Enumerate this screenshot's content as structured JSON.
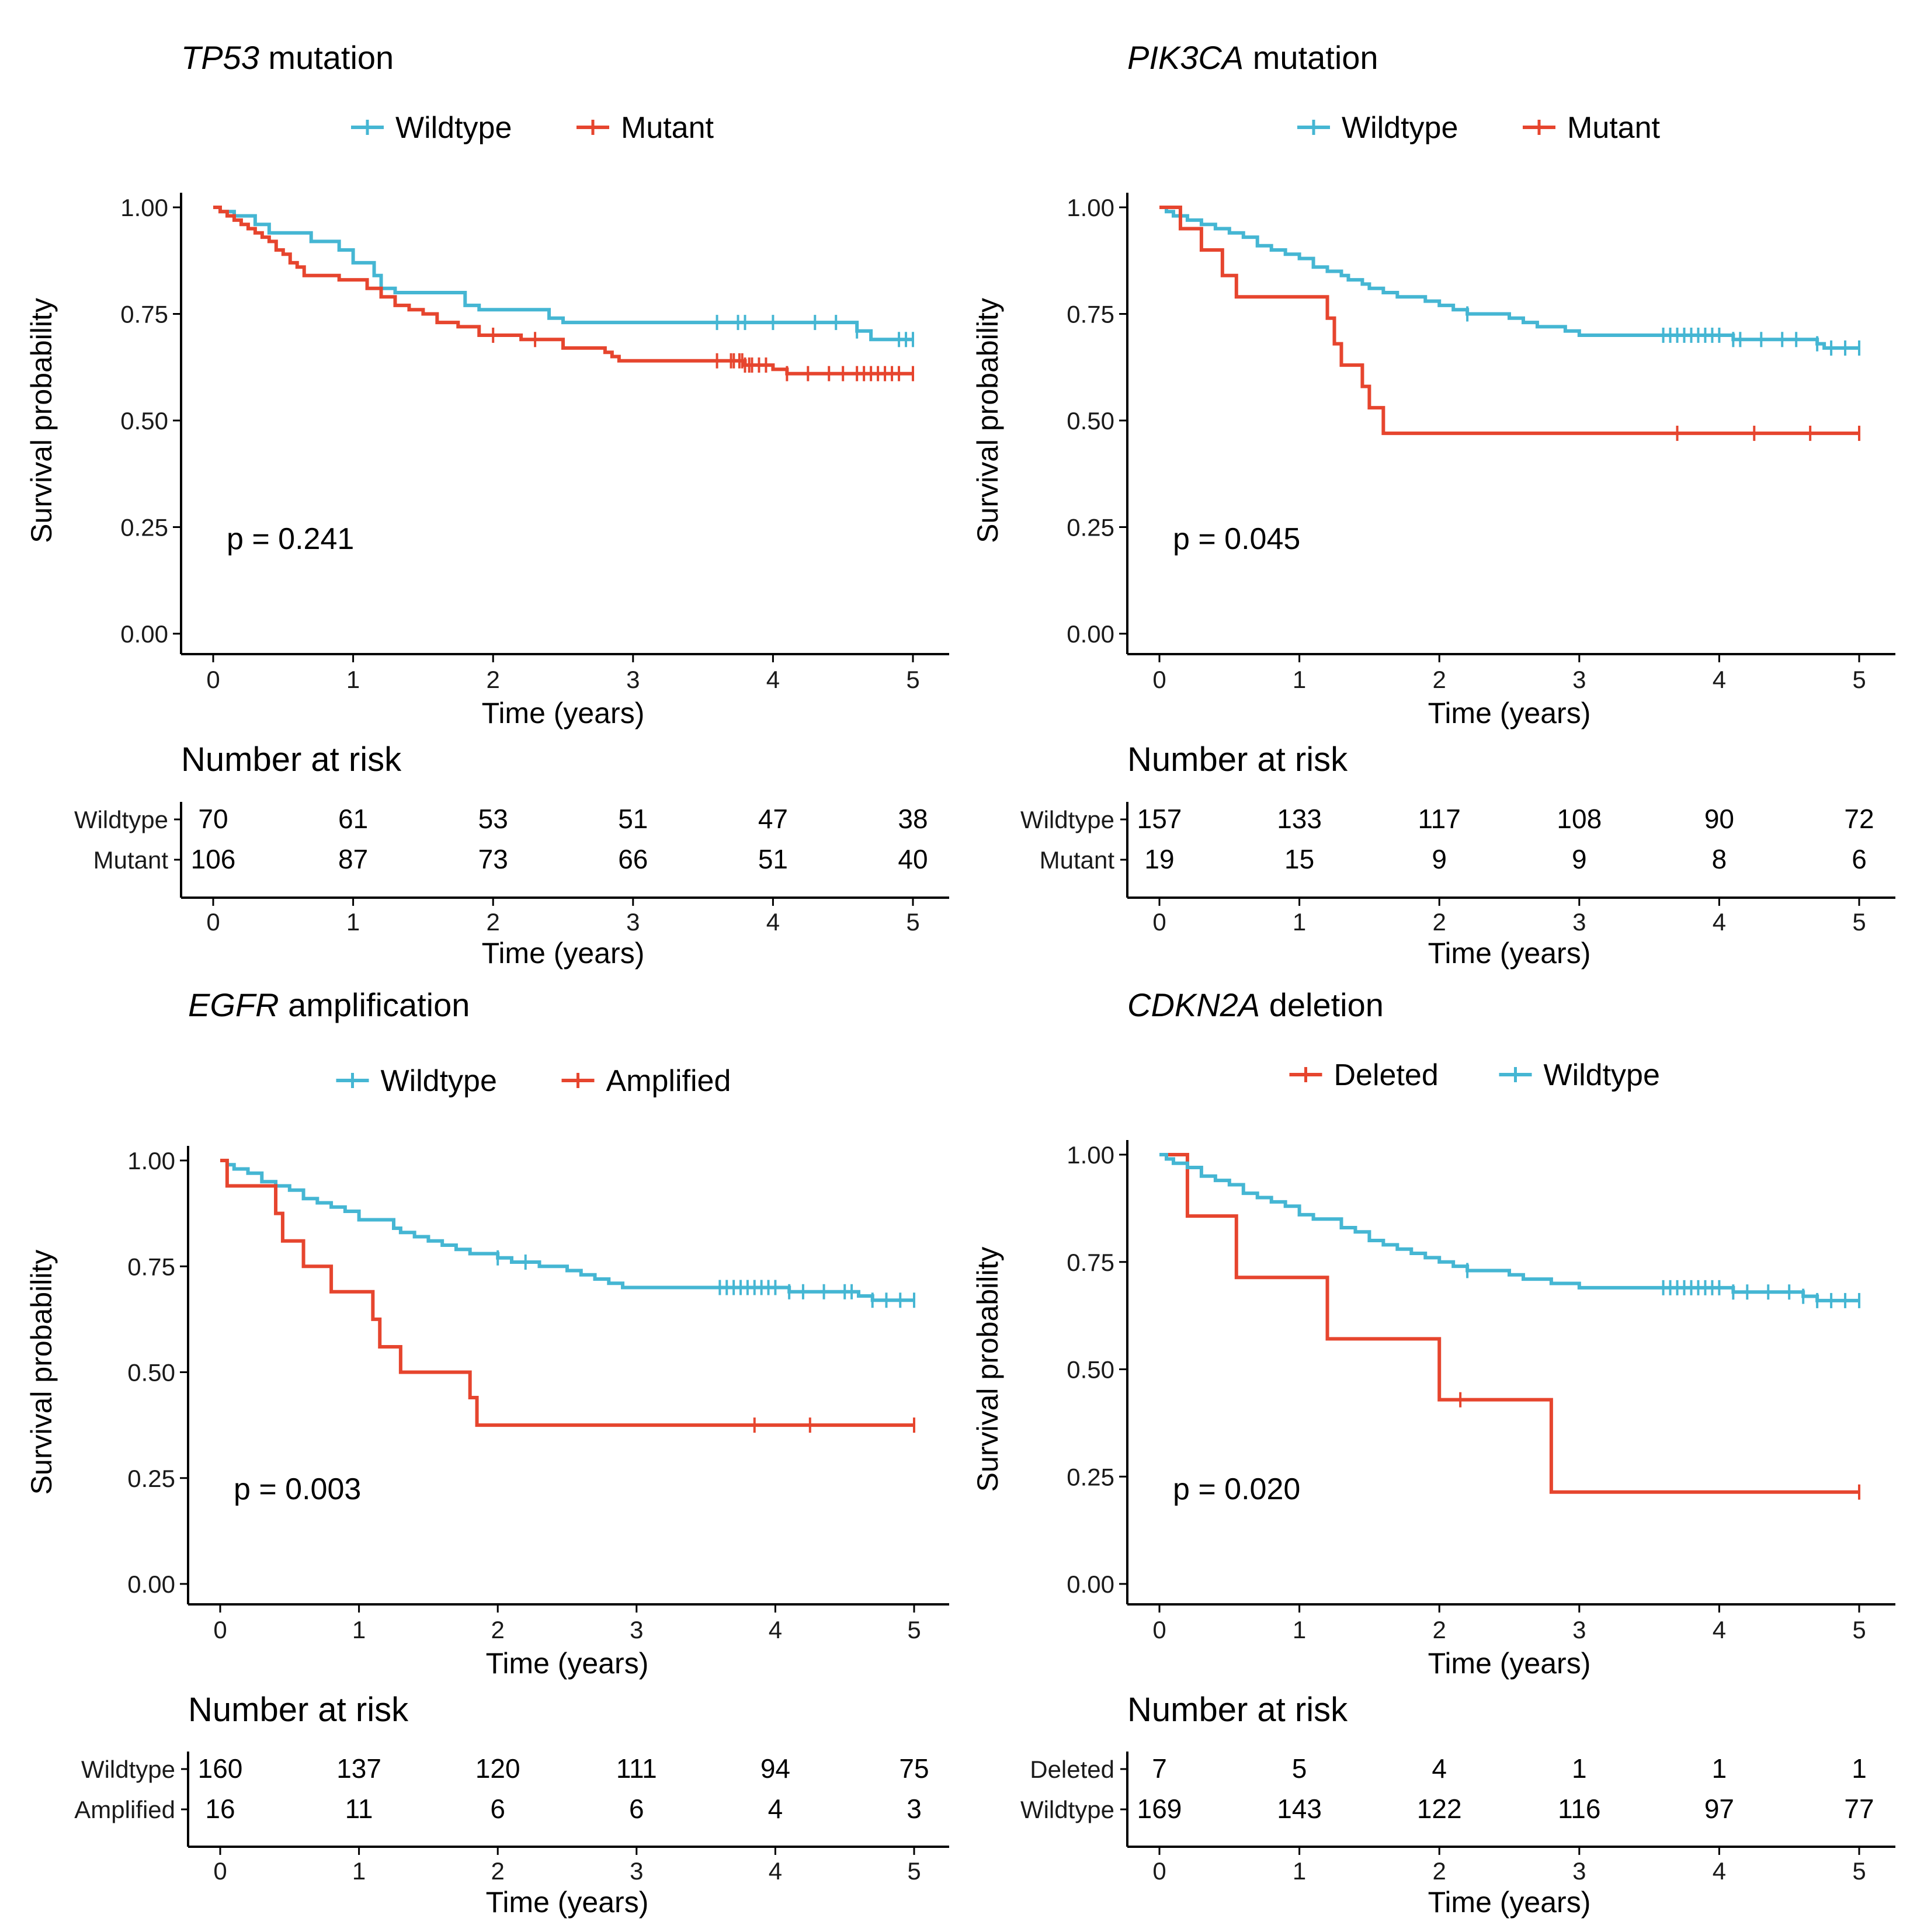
{
  "chart_data": [
    {
      "type": "line",
      "title_gene": "TP53",
      "title_suffix": " mutation",
      "xlabel": "Time (years)",
      "ylabel": "Survival probability",
      "xlim": [
        0,
        5
      ],
      "ylim": [
        0,
        1
      ],
      "xticks": [
        "0",
        "1",
        "2",
        "3",
        "4",
        "5"
      ],
      "yticks": [
        "0.00",
        "0.25",
        "0.50",
        "0.75",
        "1.00"
      ],
      "pvalue": "p = 0.241",
      "series": [
        {
          "name": "Wildtype",
          "color": "#45b6d3",
          "steps": [
            [
              0,
              1.0
            ],
            [
              0.05,
              0.99
            ],
            [
              0.15,
              0.98
            ],
            [
              0.3,
              0.96
            ],
            [
              0.4,
              0.94
            ],
            [
              0.7,
              0.92
            ],
            [
              0.9,
              0.9
            ],
            [
              1.0,
              0.87
            ],
            [
              1.15,
              0.84
            ],
            [
              1.2,
              0.81
            ],
            [
              1.3,
              0.8
            ],
            [
              1.8,
              0.77
            ],
            [
              1.9,
              0.76
            ],
            [
              2.4,
              0.74
            ],
            [
              2.5,
              0.73
            ],
            [
              4.6,
              0.71
            ],
            [
              4.7,
              0.69
            ],
            [
              5.0,
              0.69
            ]
          ],
          "censor": [
            3.6,
            3.75,
            3.8,
            4.0,
            4.3,
            4.45,
            4.6,
            4.9,
            4.95,
            5.0
          ]
        },
        {
          "name": "Mutant",
          "color": "#e6452e",
          "steps": [
            [
              0,
              1.0
            ],
            [
              0.05,
              0.99
            ],
            [
              0.1,
              0.98
            ],
            [
              0.15,
              0.97
            ],
            [
              0.2,
              0.96
            ],
            [
              0.25,
              0.95
            ],
            [
              0.3,
              0.94
            ],
            [
              0.35,
              0.93
            ],
            [
              0.4,
              0.92
            ],
            [
              0.45,
              0.9
            ],
            [
              0.5,
              0.89
            ],
            [
              0.55,
              0.87
            ],
            [
              0.6,
              0.86
            ],
            [
              0.65,
              0.84
            ],
            [
              0.9,
              0.83
            ],
            [
              1.1,
              0.81
            ],
            [
              1.2,
              0.79
            ],
            [
              1.3,
              0.77
            ],
            [
              1.4,
              0.76
            ],
            [
              1.5,
              0.75
            ],
            [
              1.6,
              0.73
            ],
            [
              1.75,
              0.72
            ],
            [
              1.9,
              0.7
            ],
            [
              2.2,
              0.69
            ],
            [
              2.5,
              0.67
            ],
            [
              2.8,
              0.66
            ],
            [
              2.85,
              0.65
            ],
            [
              2.9,
              0.64
            ],
            [
              3.8,
              0.63
            ],
            [
              4.0,
              0.62
            ],
            [
              4.1,
              0.61
            ],
            [
              5.0,
              0.61
            ]
          ],
          "censor": [
            2.0,
            2.3,
            3.6,
            3.7,
            3.72,
            3.76,
            3.78,
            3.8,
            3.83,
            3.85,
            3.9,
            3.95,
            4.1,
            4.25,
            4.4,
            4.5,
            4.6,
            4.65,
            4.7,
            4.75,
            4.8,
            4.85,
            4.9,
            5.0
          ]
        }
      ],
      "risk_table": {
        "title": "Number at risk",
        "rows": [
          {
            "label": "Wildtype",
            "values": [
              "70",
              "61",
              "53",
              "51",
              "47",
              "38"
            ]
          },
          {
            "label": "Mutant",
            "values": [
              "106",
              "87",
              "73",
              "66",
              "51",
              "40"
            ]
          }
        ]
      }
    },
    {
      "type": "line",
      "title_gene": "PIK3CA",
      "title_suffix": " mutation",
      "xlabel": "Time (years)",
      "ylabel": "Survival probability",
      "xlim": [
        0,
        5
      ],
      "ylim": [
        0,
        1
      ],
      "xticks": [
        "0",
        "1",
        "2",
        "3",
        "4",
        "5"
      ],
      "yticks": [
        "0.00",
        "0.25",
        "0.50",
        "0.75",
        "1.00"
      ],
      "pvalue": "p = 0.045",
      "series": [
        {
          "name": "Wildtype",
          "color": "#45b6d3",
          "steps": [
            [
              0,
              1.0
            ],
            [
              0.05,
              0.99
            ],
            [
              0.1,
              0.98
            ],
            [
              0.2,
              0.97
            ],
            [
              0.3,
              0.96
            ],
            [
              0.4,
              0.95
            ],
            [
              0.5,
              0.94
            ],
            [
              0.6,
              0.93
            ],
            [
              0.7,
              0.91
            ],
            [
              0.8,
              0.9
            ],
            [
              0.9,
              0.89
            ],
            [
              1.0,
              0.88
            ],
            [
              1.1,
              0.86
            ],
            [
              1.2,
              0.85
            ],
            [
              1.3,
              0.84
            ],
            [
              1.35,
              0.83
            ],
            [
              1.45,
              0.82
            ],
            [
              1.5,
              0.81
            ],
            [
              1.6,
              0.8
            ],
            [
              1.7,
              0.79
            ],
            [
              1.9,
              0.78
            ],
            [
              2.0,
              0.77
            ],
            [
              2.1,
              0.76
            ],
            [
              2.2,
              0.75
            ],
            [
              2.5,
              0.74
            ],
            [
              2.6,
              0.73
            ],
            [
              2.7,
              0.72
            ],
            [
              2.9,
              0.71
            ],
            [
              3.0,
              0.7
            ],
            [
              4.1,
              0.69
            ],
            [
              4.7,
              0.68
            ],
            [
              4.75,
              0.67
            ],
            [
              5.0,
              0.67
            ]
          ],
          "censor": [
            2.2,
            3.6,
            3.65,
            3.7,
            3.75,
            3.8,
            3.85,
            3.9,
            3.95,
            4.0,
            4.1,
            4.15,
            4.3,
            4.45,
            4.55,
            4.7,
            4.8,
            4.9,
            5.0
          ]
        },
        {
          "name": "Mutant",
          "color": "#e6452e",
          "steps": [
            [
              0,
              1.0
            ],
            [
              0.15,
              0.95
            ],
            [
              0.3,
              0.9
            ],
            [
              0.45,
              0.84
            ],
            [
              0.55,
              0.79
            ],
            [
              1.2,
              0.74
            ],
            [
              1.25,
              0.68
            ],
            [
              1.3,
              0.63
            ],
            [
              1.45,
              0.58
            ],
            [
              1.5,
              0.53
            ],
            [
              1.6,
              0.47
            ],
            [
              5.0,
              0.47
            ]
          ],
          "censor": [
            3.7,
            4.25,
            4.65,
            5.0
          ]
        }
      ],
      "risk_table": {
        "title": "Number at risk",
        "rows": [
          {
            "label": "Wildtype",
            "values": [
              "157",
              "133",
              "117",
              "108",
              "90",
              "72"
            ]
          },
          {
            "label": "Mutant",
            "values": [
              "19",
              "15",
              "9",
              "9",
              "8",
              "6"
            ]
          }
        ]
      }
    },
    {
      "type": "line",
      "title_gene": "EGFR",
      "title_suffix": " amplification",
      "xlabel": "Time (years)",
      "ylabel": "Survival probability",
      "xlim": [
        0,
        5
      ],
      "ylim": [
        0,
        1
      ],
      "xticks": [
        "0",
        "1",
        "2",
        "3",
        "4",
        "5"
      ],
      "yticks": [
        "0.00",
        "0.25",
        "0.50",
        "0.75",
        "1.00"
      ],
      "pvalue": "p = 0.003",
      "series": [
        {
          "name": "Wildtype",
          "color": "#45b6d3",
          "steps": [
            [
              0,
              1.0
            ],
            [
              0.05,
              0.99
            ],
            [
              0.1,
              0.98
            ],
            [
              0.2,
              0.97
            ],
            [
              0.3,
              0.95
            ],
            [
              0.4,
              0.94
            ],
            [
              0.5,
              0.93
            ],
            [
              0.6,
              0.91
            ],
            [
              0.7,
              0.9
            ],
            [
              0.8,
              0.89
            ],
            [
              0.9,
              0.88
            ],
            [
              1.0,
              0.86
            ],
            [
              1.25,
              0.84
            ],
            [
              1.3,
              0.83
            ],
            [
              1.4,
              0.82
            ],
            [
              1.5,
              0.81
            ],
            [
              1.6,
              0.8
            ],
            [
              1.7,
              0.79
            ],
            [
              1.8,
              0.78
            ],
            [
              2.0,
              0.77
            ],
            [
              2.1,
              0.76
            ],
            [
              2.3,
              0.75
            ],
            [
              2.5,
              0.74
            ],
            [
              2.6,
              0.73
            ],
            [
              2.7,
              0.72
            ],
            [
              2.8,
              0.71
            ],
            [
              2.9,
              0.7
            ],
            [
              4.0,
              0.7
            ],
            [
              4.1,
              0.69
            ],
            [
              4.6,
              0.68
            ],
            [
              4.7,
              0.67
            ],
            [
              5.0,
              0.67
            ]
          ],
          "censor": [
            2.0,
            2.2,
            3.6,
            3.65,
            3.7,
            3.75,
            3.8,
            3.85,
            3.9,
            3.95,
            4.0,
            4.1,
            4.2,
            4.35,
            4.5,
            4.55,
            4.7,
            4.8,
            4.9,
            5.0
          ]
        },
        {
          "name": "Amplified",
          "color": "#e6452e",
          "steps": [
            [
              0,
              1.0
            ],
            [
              0.05,
              0.94
            ],
            [
              0.4,
              0.875
            ],
            [
              0.45,
              0.81
            ],
            [
              0.6,
              0.75
            ],
            [
              0.8,
              0.69
            ],
            [
              1.1,
              0.625
            ],
            [
              1.15,
              0.56
            ],
            [
              1.3,
              0.5
            ],
            [
              1.8,
              0.44
            ],
            [
              1.85,
              0.375
            ],
            [
              5.0,
              0.375
            ]
          ],
          "censor": [
            3.85,
            4.25,
            5.0
          ]
        }
      ],
      "risk_table": {
        "title": "Number at risk",
        "rows": [
          {
            "label": "Wildtype",
            "values": [
              "160",
              "137",
              "120",
              "111",
              "94",
              "75"
            ]
          },
          {
            "label": "Amplified",
            "values": [
              "16",
              "11",
              "6",
              "6",
              "4",
              "3"
            ]
          }
        ]
      }
    },
    {
      "type": "line",
      "title_gene": "CDKN2A",
      "title_suffix": " deletion",
      "xlabel": "Time (years)",
      "ylabel": "Survival probability",
      "xlim": [
        0,
        5
      ],
      "ylim": [
        0,
        1
      ],
      "xticks": [
        "0",
        "1",
        "2",
        "3",
        "4",
        "5"
      ],
      "yticks": [
        "0.00",
        "0.25",
        "0.50",
        "0.75",
        "1.00"
      ],
      "pvalue": "p = 0.020",
      "series": [
        {
          "name": "Deleted",
          "color": "#e6452e",
          "steps": [
            [
              0,
              1.0
            ],
            [
              0.2,
              0.857
            ],
            [
              0.55,
              0.714
            ],
            [
              1.2,
              0.571
            ],
            [
              2.0,
              0.429
            ],
            [
              2.8,
              0.214
            ],
            [
              5.0,
              0.214
            ]
          ],
          "censor": [
            2.15,
            5.0
          ]
        },
        {
          "name": "Wildtype",
          "color": "#45b6d3",
          "steps": [
            [
              0,
              1.0
            ],
            [
              0.05,
              0.99
            ],
            [
              0.1,
              0.98
            ],
            [
              0.2,
              0.97
            ],
            [
              0.3,
              0.95
            ],
            [
              0.4,
              0.94
            ],
            [
              0.5,
              0.93
            ],
            [
              0.6,
              0.91
            ],
            [
              0.7,
              0.9
            ],
            [
              0.8,
              0.89
            ],
            [
              0.9,
              0.88
            ],
            [
              1.0,
              0.86
            ],
            [
              1.1,
              0.85
            ],
            [
              1.3,
              0.83
            ],
            [
              1.4,
              0.82
            ],
            [
              1.5,
              0.8
            ],
            [
              1.6,
              0.79
            ],
            [
              1.7,
              0.78
            ],
            [
              1.8,
              0.77
            ],
            [
              1.9,
              0.76
            ],
            [
              2.0,
              0.75
            ],
            [
              2.1,
              0.74
            ],
            [
              2.2,
              0.73
            ],
            [
              2.5,
              0.72
            ],
            [
              2.6,
              0.71
            ],
            [
              2.8,
              0.7
            ],
            [
              3.0,
              0.69
            ],
            [
              4.1,
              0.68
            ],
            [
              4.6,
              0.67
            ],
            [
              4.7,
              0.66
            ],
            [
              5.0,
              0.66
            ]
          ],
          "censor": [
            2.2,
            3.6,
            3.65,
            3.7,
            3.75,
            3.8,
            3.85,
            3.9,
            3.95,
            4.0,
            4.1,
            4.2,
            4.35,
            4.5,
            4.6,
            4.7,
            4.8,
            4.9,
            5.0
          ]
        }
      ],
      "risk_table": {
        "title": "Number at risk",
        "rows": [
          {
            "label": "Deleted",
            "values": [
              "7",
              "5",
              "4",
              "1",
              "1",
              "1"
            ]
          },
          {
            "label": "Wildtype",
            "values": [
              "169",
              "143",
              "122",
              "116",
              "97",
              "77"
            ]
          }
        ]
      }
    }
  ]
}
